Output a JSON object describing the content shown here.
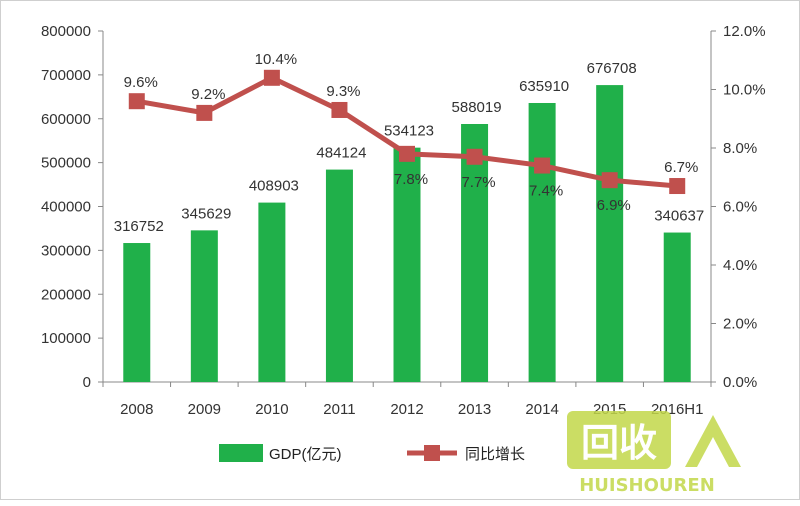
{
  "chart_data": {
    "type": "bar",
    "categories": [
      "2008",
      "2009",
      "2010",
      "2011",
      "2012",
      "2013",
      "2014",
      "2015",
      "2016H1"
    ],
    "series": [
      {
        "name": "GDP(亿元)",
        "type": "bar",
        "axis": "left",
        "color": "#20b04a",
        "values": [
          316752,
          345629,
          408903,
          484124,
          534123,
          588019,
          635910,
          676708,
          340637
        ]
      },
      {
        "name": "同比增长",
        "type": "line",
        "axis": "right",
        "color": "#c0504d",
        "values": [
          9.6,
          9.2,
          10.4,
          9.3,
          7.8,
          7.7,
          7.4,
          6.9,
          6.7
        ]
      }
    ],
    "bar_labels": [
      "316752",
      "345629",
      "408903",
      "484124",
      "534123",
      "588019",
      "635910",
      "676708",
      "340637"
    ],
    "line_labels": [
      "9.6%",
      "9.2%",
      "10.4%",
      "9.3%",
      "7.8%",
      "7.7%",
      "7.4%",
      "6.9%",
      "6.7%"
    ],
    "ylim_left": [
      0,
      800000
    ],
    "ylim_right": [
      0,
      12
    ],
    "left_ticks": [
      "0",
      "100000",
      "200000",
      "300000",
      "400000",
      "500000",
      "600000",
      "700000",
      "800000"
    ],
    "right_ticks": [
      "0.0%",
      "2.0%",
      "4.0%",
      "6.0%",
      "8.0%",
      "10.0%",
      "12.0%"
    ],
    "grid": false,
    "legend_position": "bottom"
  },
  "legend": {
    "bar_label": "GDP(亿元)",
    "line_label": "同比增长"
  },
  "watermark": {
    "main": "回收",
    "sub": "HUISHOUREN"
  }
}
